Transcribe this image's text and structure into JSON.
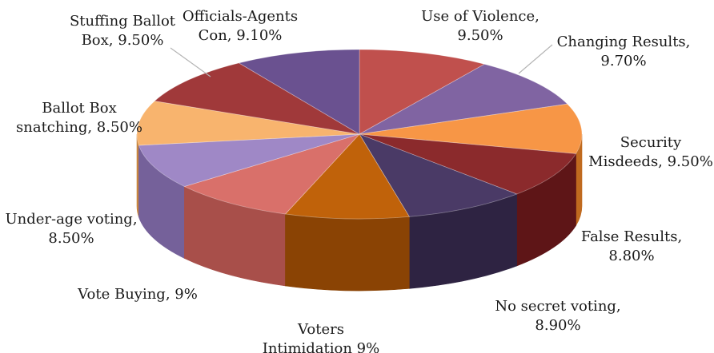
{
  "chart_data": {
    "type": "pie",
    "title": "",
    "slices": [
      {
        "label": "Use of Violence, 9.50%",
        "lines": [
          "Use of Violence,",
          "9.50%"
        ],
        "value": 9.5,
        "color": "#c0504d",
        "side": "#8e2f2c"
      },
      {
        "label": "Changing Results, 9.70%",
        "lines": [
          "Changing Results,",
          "9.70%"
        ],
        "value": 9.7,
        "color": "#8064a2",
        "side": "#5a4376"
      },
      {
        "label": "Security Misdeeds, 9.50%",
        "lines": [
          "Security",
          "Misdeeds, 9.50%"
        ],
        "value": 9.5,
        "color": "#f79646",
        "side": "#c06a1f"
      },
      {
        "label": "False Results, 8.80%",
        "lines": [
          "False Results,",
          "8.80%"
        ],
        "value": 8.8,
        "color": "#8b2a2c",
        "side": "#5e1517"
      },
      {
        "label": "No secret voting, 8.90%",
        "lines": [
          "No secret voting,",
          "8.90%"
        ],
        "value": 8.9,
        "color": "#4a3a66",
        "side": "#2e2342"
      },
      {
        "label": "Voters Intimidation 9%",
        "lines": [
          "Voters",
          "Intimidation 9%"
        ],
        "value": 9.0,
        "color": "#c0620a",
        "side": "#8a4304"
      },
      {
        "label": "Vote Buying, 9%",
        "lines": [
          "Vote Buying, 9%"
        ],
        "value": 9.0,
        "color": "#d9706a",
        "side": "#a84f4a"
      },
      {
        "label": "Under-age voting, 8.50%",
        "lines": [
          "Under-age voting,",
          "8.50%"
        ],
        "value": 8.5,
        "color": "#9f88c6",
        "side": "#75619a"
      },
      {
        "label": "Ballot Box snatching, 8.50%",
        "lines": [
          "Ballot Box",
          "snatching, 8.50%"
        ],
        "value": 8.5,
        "color": "#f8b46e",
        "side": "#c98640"
      },
      {
        "label": "Stuffing Ballot Box, 9.50%",
        "lines": [
          "Stuffing Ballot",
          "Box, 9.50%"
        ],
        "value": 9.5,
        "color": "#a0393a",
        "side": "#6e2224"
      },
      {
        "label": "Officials-Agents Con, 9.10%",
        "lines": [
          "Officials-Agents",
          "Con, 9.10%"
        ],
        "value": 9.1,
        "color": "#6a5190",
        "side": "#463465"
      }
    ]
  }
}
